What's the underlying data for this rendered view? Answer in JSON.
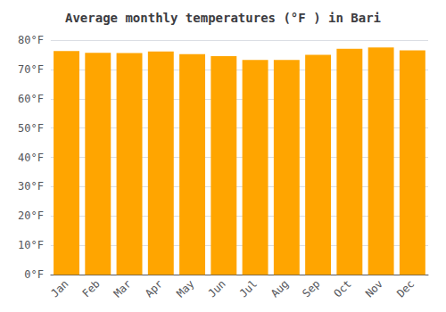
{
  "chart_data": {
    "type": "bar",
    "title": "Average monthly temperatures (°F ) in Bari",
    "categories": [
      "Jan",
      "Feb",
      "Mar",
      "Apr",
      "May",
      "Jun",
      "Jul",
      "Aug",
      "Sep",
      "Oct",
      "Nov",
      "Dec"
    ],
    "values": [
      76.3,
      75.7,
      75.6,
      76.1,
      75.2,
      74.5,
      73.2,
      73.2,
      75.0,
      77.0,
      77.5,
      76.5
    ],
    "color": "#FFA500",
    "ylim": [
      0,
      80
    ],
    "yticks": [
      {
        "value": 0,
        "label": "0°F"
      },
      {
        "value": 10,
        "label": "10°F"
      },
      {
        "value": 20,
        "label": "20°F"
      },
      {
        "value": 30,
        "label": "30°F"
      },
      {
        "value": 40,
        "label": "40°F"
      },
      {
        "value": 50,
        "label": "50°F"
      },
      {
        "value": 60,
        "label": "60°F"
      },
      {
        "value": 70,
        "label": "70°F"
      },
      {
        "value": 80,
        "label": "80°F"
      }
    ],
    "grid": true
  }
}
